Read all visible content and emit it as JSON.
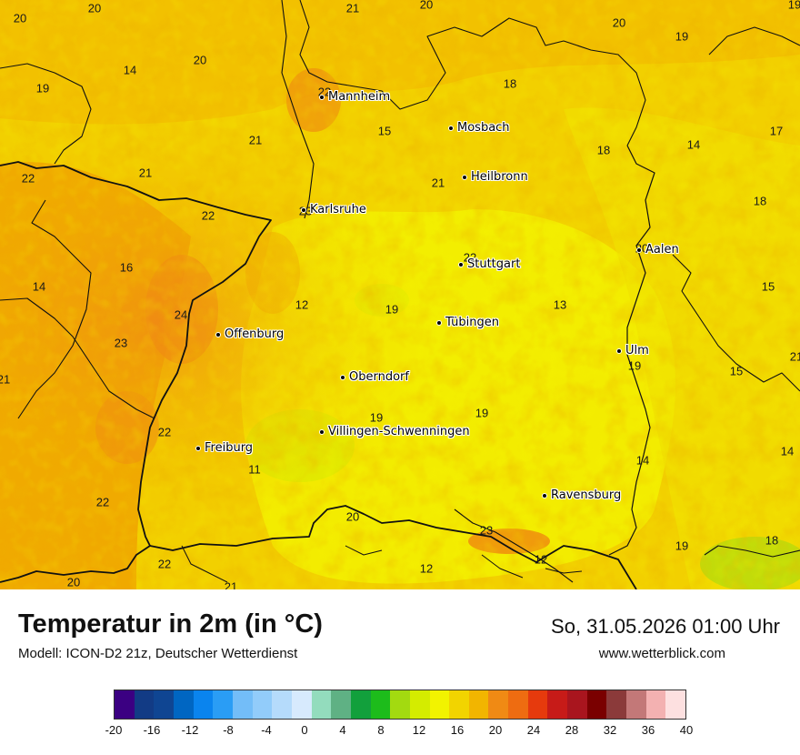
{
  "header": {
    "title": "Temperatur in 2m (in °C)",
    "model": "Modell: ICON-D2 21z, Deutscher Wetterdienst",
    "datetime": "So, 31.05.2026 01:00 Uhr",
    "website": "www.wetterblick.com"
  },
  "cities": [
    {
      "name": "Mannheim"
    },
    {
      "name": "Mosbach"
    },
    {
      "name": "Heilbronn"
    },
    {
      "name": "Karlsruhe"
    },
    {
      "name": "Aalen"
    },
    {
      "name": "Stuttgart"
    },
    {
      "name": "Tübingen"
    },
    {
      "name": "Offenburg"
    },
    {
      "name": "Ulm"
    },
    {
      "name": "Oberndorf"
    },
    {
      "name": "Villingen-Schwenningen"
    },
    {
      "name": "Freiburg"
    },
    {
      "name": "Ravensburg"
    }
  ],
  "map_values": [
    "20",
    "20",
    "21",
    "20",
    "19",
    "20",
    "19",
    "14",
    "20",
    "19",
    "22",
    "18",
    "15",
    "18",
    "14",
    "17",
    "21",
    "21",
    "22",
    "21",
    "18",
    "22",
    "23",
    "16",
    "14",
    "24",
    "12",
    "19",
    "20",
    "13",
    "23",
    "15",
    "21",
    "19",
    "19",
    "19",
    "21",
    "15",
    "22",
    "11",
    "14",
    "14",
    "22",
    "20",
    "23",
    "22",
    "12",
    "12",
    "19",
    "18",
    "20",
    "21",
    "22"
  ],
  "colorbar": {
    "ticks": [
      "-20",
      "-16",
      "-12",
      "-8",
      "-4",
      "0",
      "4",
      "8",
      "12",
      "16",
      "20",
      "24",
      "28",
      "32",
      "36",
      "40"
    ],
    "colors": [
      "#3b0082",
      "#123b85",
      "#0f4592",
      "#0066c2",
      "#0a84ee",
      "#2a9df5",
      "#73bdf8",
      "#92ccfa",
      "#b5dbfb",
      "#d7eafd",
      "#93dcbd",
      "#5fb184",
      "#12a03c",
      "#1dbc1b",
      "#a3da10",
      "#d4ec00",
      "#f2f300",
      "#f2d400",
      "#f2b500",
      "#f08a14",
      "#ee6c11",
      "#e63a0d",
      "#c71b18",
      "#a9151e",
      "#7a0000",
      "#8b3a3a",
      "#c37878",
      "#f3b1b1",
      "#fde0e0"
    ]
  }
}
